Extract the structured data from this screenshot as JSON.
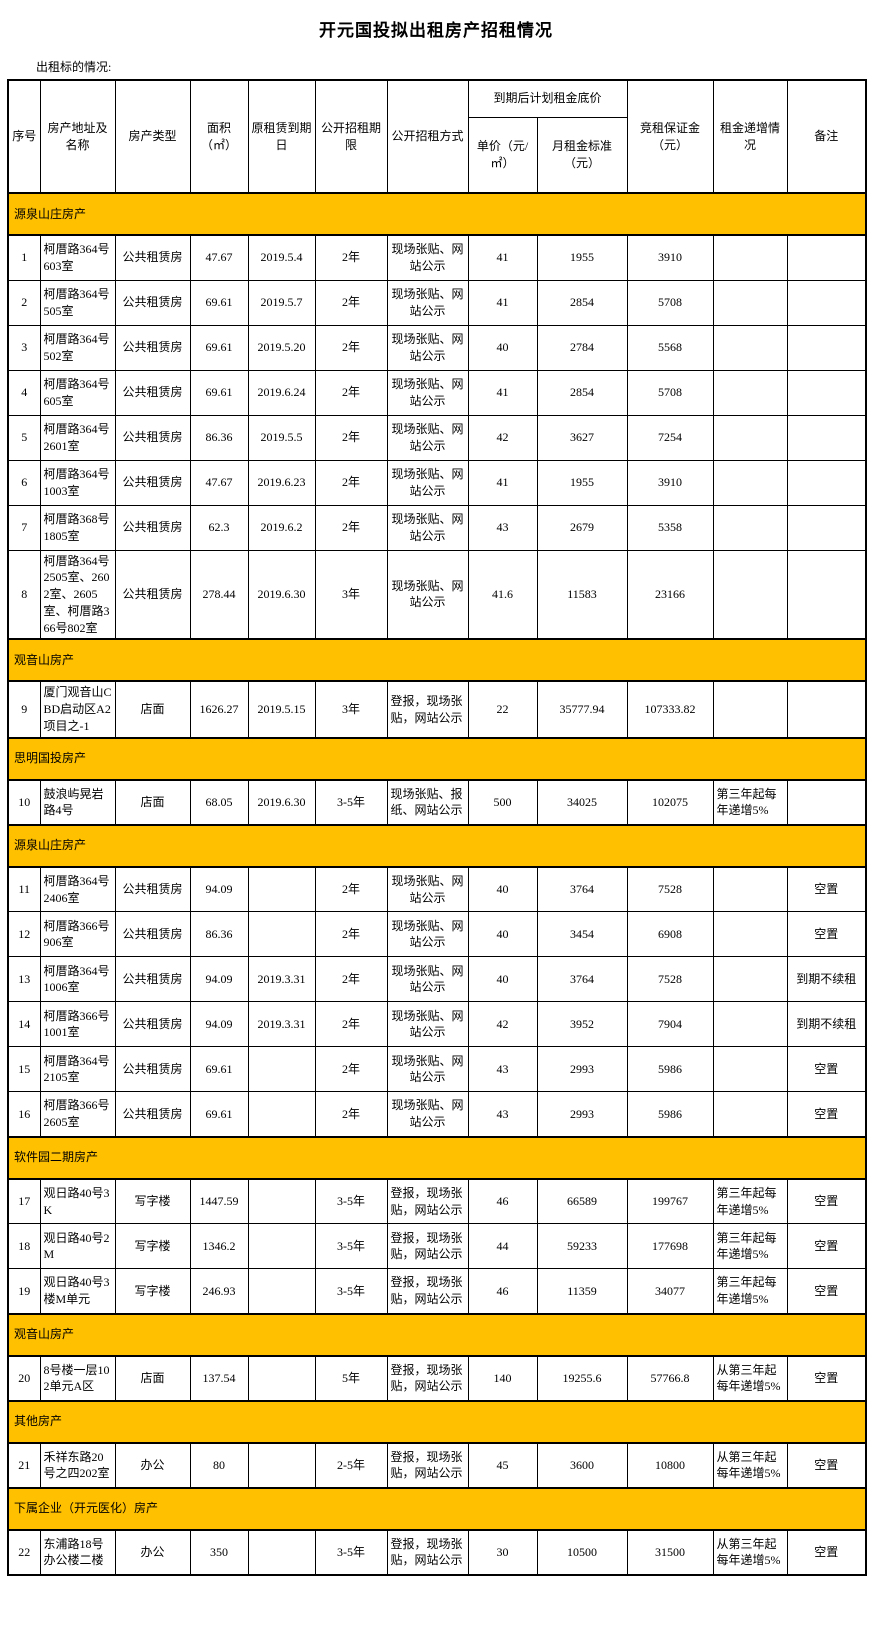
{
  "page": {
    "title": "开元国投拟出租房产招租情况",
    "subtitle": "出租标的情况:"
  },
  "colors": {
    "section_bg": "#FFC000",
    "border": "#000000",
    "text": "#000000",
    "page_bg": "#FFFFFF"
  },
  "table": {
    "header": {
      "no": "序号",
      "address": "房产地址及名称",
      "type": "房产类型",
      "area": "面积（㎡）",
      "expiry": "原租赁到期日",
      "term": "公开招租期限",
      "method": "公开招租方式",
      "plan_group": "到期后计划租金底价",
      "unit_price": "单价（元/㎡）",
      "monthly_rent": "月租金标准（元）",
      "deposit": "竞租保证金（元）",
      "increment": "租金递增情况",
      "remark": "备注"
    },
    "rows": [
      {
        "section": "源泉山庄房产"
      },
      {
        "no": "1",
        "address": "柯厝路364号603室",
        "type": "公共租赁房",
        "area": "47.67",
        "expiry": "2019.5.4",
        "term": "2年",
        "method": "现场张贴、网站公示",
        "unit_price": "41",
        "monthly_rent": "1955",
        "deposit": "3910",
        "increment": "",
        "remark": ""
      },
      {
        "no": "2",
        "address": "柯厝路364号505室",
        "type": "公共租赁房",
        "area": "69.61",
        "expiry": "2019.5.7",
        "term": "2年",
        "method": "现场张贴、网站公示",
        "unit_price": "41",
        "monthly_rent": "2854",
        "deposit": "5708",
        "increment": "",
        "remark": ""
      },
      {
        "no": "3",
        "address": "柯厝路364号502室",
        "type": "公共租赁房",
        "area": "69.61",
        "expiry": "2019.5.20",
        "term": "2年",
        "method": "现场张贴、网站公示",
        "unit_price": "40",
        "monthly_rent": "2784",
        "deposit": "5568",
        "increment": "",
        "remark": ""
      },
      {
        "no": "4",
        "address": "柯厝路364号605室",
        "type": "公共租赁房",
        "area": "69.61",
        "expiry": "2019.6.24",
        "term": "2年",
        "method": "现场张贴、网站公示",
        "unit_price": "41",
        "monthly_rent": "2854",
        "deposit": "5708",
        "increment": "",
        "remark": ""
      },
      {
        "no": "5",
        "address": "柯厝路364号2601室",
        "type": "公共租赁房",
        "area": "86.36",
        "expiry": "2019.5.5",
        "term": "2年",
        "method": "现场张贴、网站公示",
        "unit_price": "42",
        "monthly_rent": "3627",
        "deposit": "7254",
        "increment": "",
        "remark": ""
      },
      {
        "no": "6",
        "address": "柯厝路364号1003室",
        "type": "公共租赁房",
        "area": "47.67",
        "expiry": "2019.6.23",
        "term": "2年",
        "method": "现场张贴、网站公示",
        "unit_price": "41",
        "monthly_rent": "1955",
        "deposit": "3910",
        "increment": "",
        "remark": ""
      },
      {
        "no": "7",
        "address": "柯厝路368号1805室",
        "type": "公共租赁房",
        "area": "62.3",
        "expiry": "2019.6.2",
        "term": "2年",
        "method": "现场张贴、网站公示",
        "unit_price": "43",
        "monthly_rent": "2679",
        "deposit": "5358",
        "increment": "",
        "remark": ""
      },
      {
        "no": "8",
        "address": "柯厝路364号2505室、2602室、2605室、柯厝路366号802室",
        "type": "公共租赁房",
        "area": "278.44",
        "expiry": "2019.6.30",
        "term": "3年",
        "method": "现场张贴、网站公示",
        "unit_price": "41.6",
        "monthly_rent": "11583",
        "deposit": "23166",
        "increment": "",
        "remark": ""
      },
      {
        "section": "观音山房产"
      },
      {
        "no": "9",
        "address": "厦门观音山CBD启动区A2项目之-1",
        "type": "店面",
        "area": "1626.27",
        "expiry": "2019.5.15",
        "term": "3年",
        "method": "登报，现场张贴，网站公示",
        "unit_price": "22",
        "monthly_rent": "35777.94",
        "deposit": "107333.82",
        "increment": "",
        "remark": ""
      },
      {
        "section": "思明国投房产"
      },
      {
        "no": "10",
        "address": "鼓浪屿晃岩路4号",
        "type": "店面",
        "area": "68.05",
        "expiry": "2019.6.30",
        "term": "3-5年",
        "method": "现场张贴、报纸、网站公示",
        "unit_price": "500",
        "monthly_rent": "34025",
        "deposit": "102075",
        "increment": "第三年起每年递增5%",
        "remark": ""
      },
      {
        "section": "源泉山庄房产"
      },
      {
        "no": "11",
        "address": "柯厝路364号2406室",
        "type": "公共租赁房",
        "area": "94.09",
        "expiry": "",
        "term": "2年",
        "method": "现场张贴、网站公示",
        "unit_price": "40",
        "monthly_rent": "3764",
        "deposit": "7528",
        "increment": "",
        "remark": "空置"
      },
      {
        "no": "12",
        "address": "柯厝路366号906室",
        "type": "公共租赁房",
        "area": "86.36",
        "expiry": "",
        "term": "2年",
        "method": "现场张贴、网站公示",
        "unit_price": "40",
        "monthly_rent": "3454",
        "deposit": "6908",
        "increment": "",
        "remark": "空置"
      },
      {
        "no": "13",
        "address": "柯厝路364号1006室",
        "type": "公共租赁房",
        "area": "94.09",
        "expiry": "2019.3.31",
        "term": "2年",
        "method": "现场张贴、网站公示",
        "unit_price": "40",
        "monthly_rent": "3764",
        "deposit": "7528",
        "increment": "",
        "remark": "到期不续租"
      },
      {
        "no": "14",
        "address": "柯厝路366号1001室",
        "type": "公共租赁房",
        "area": "94.09",
        "expiry": "2019.3.31",
        "term": "2年",
        "method": "现场张贴、网站公示",
        "unit_price": "42",
        "monthly_rent": "3952",
        "deposit": "7904",
        "increment": "",
        "remark": "到期不续租"
      },
      {
        "no": "15",
        "address": "柯厝路364号2105室",
        "type": "公共租赁房",
        "area": "69.61",
        "expiry": "",
        "term": "2年",
        "method": "现场张贴、网站公示",
        "unit_price": "43",
        "monthly_rent": "2993",
        "deposit": "5986",
        "increment": "",
        "remark": "空置"
      },
      {
        "no": "16",
        "address": "柯厝路366号2605室",
        "type": "公共租赁房",
        "area": "69.61",
        "expiry": "",
        "term": "2年",
        "method": "现场张贴、网站公示",
        "unit_price": "43",
        "monthly_rent": "2993",
        "deposit": "5986",
        "increment": "",
        "remark": "空置"
      },
      {
        "section": "软件园二期房产"
      },
      {
        "no": "17",
        "address": "观日路40号3K",
        "type": "写字楼",
        "area": "1447.59",
        "expiry": "",
        "term": "3-5年",
        "method": "登报，现场张贴，网站公示",
        "unit_price": "46",
        "monthly_rent": "66589",
        "deposit": "199767",
        "increment": "第三年起每年递增5%",
        "remark": "空置"
      },
      {
        "no": "18",
        "address": "观日路40号2M",
        "type": "写字楼",
        "area": "1346.2",
        "expiry": "",
        "term": "3-5年",
        "method": "登报，现场张贴，网站公示",
        "unit_price": "44",
        "monthly_rent": "59233",
        "deposit": "177698",
        "increment": "第三年起每年递增5%",
        "remark": "空置"
      },
      {
        "no": "19",
        "address": "观日路40号3楼M单元",
        "type": "写字楼",
        "area": "246.93",
        "expiry": "",
        "term": "3-5年",
        "method": "登报，现场张贴，网站公示",
        "unit_price": "46",
        "monthly_rent": "11359",
        "deposit": "34077",
        "increment": "第三年起每年递增5%",
        "remark": "空置"
      },
      {
        "section": "观音山房产"
      },
      {
        "no": "20",
        "address": "8号楼一层102单元A区",
        "type": "店面",
        "area": "137.54",
        "expiry": "",
        "term": "5年",
        "method": "登报，现场张贴，网站公示",
        "unit_price": "140",
        "monthly_rent": "19255.6",
        "deposit": "57766.8",
        "increment": "从第三年起每年递增5%",
        "remark": "空置"
      },
      {
        "section": "其他房产"
      },
      {
        "no": "21",
        "address": "禾祥东路20号之四202室",
        "type": "办公",
        "area": "80",
        "expiry": "",
        "term": "2-5年",
        "method": "登报，现场张贴，网站公示",
        "unit_price": "45",
        "monthly_rent": "3600",
        "deposit": "10800",
        "increment": "从第三年起每年递增5%",
        "remark": "空置"
      },
      {
        "section": "下属企业（开元医化）房产"
      },
      {
        "no": "22",
        "address": "东浦路18号办公楼二楼",
        "type": "办公",
        "area": "350",
        "expiry": "",
        "term": "3-5年",
        "method": "登报，现场张贴，网站公示",
        "unit_price": "30",
        "monthly_rent": "10500",
        "deposit": "31500",
        "increment": "从第三年起每年递增5%",
        "remark": "空置"
      }
    ]
  }
}
